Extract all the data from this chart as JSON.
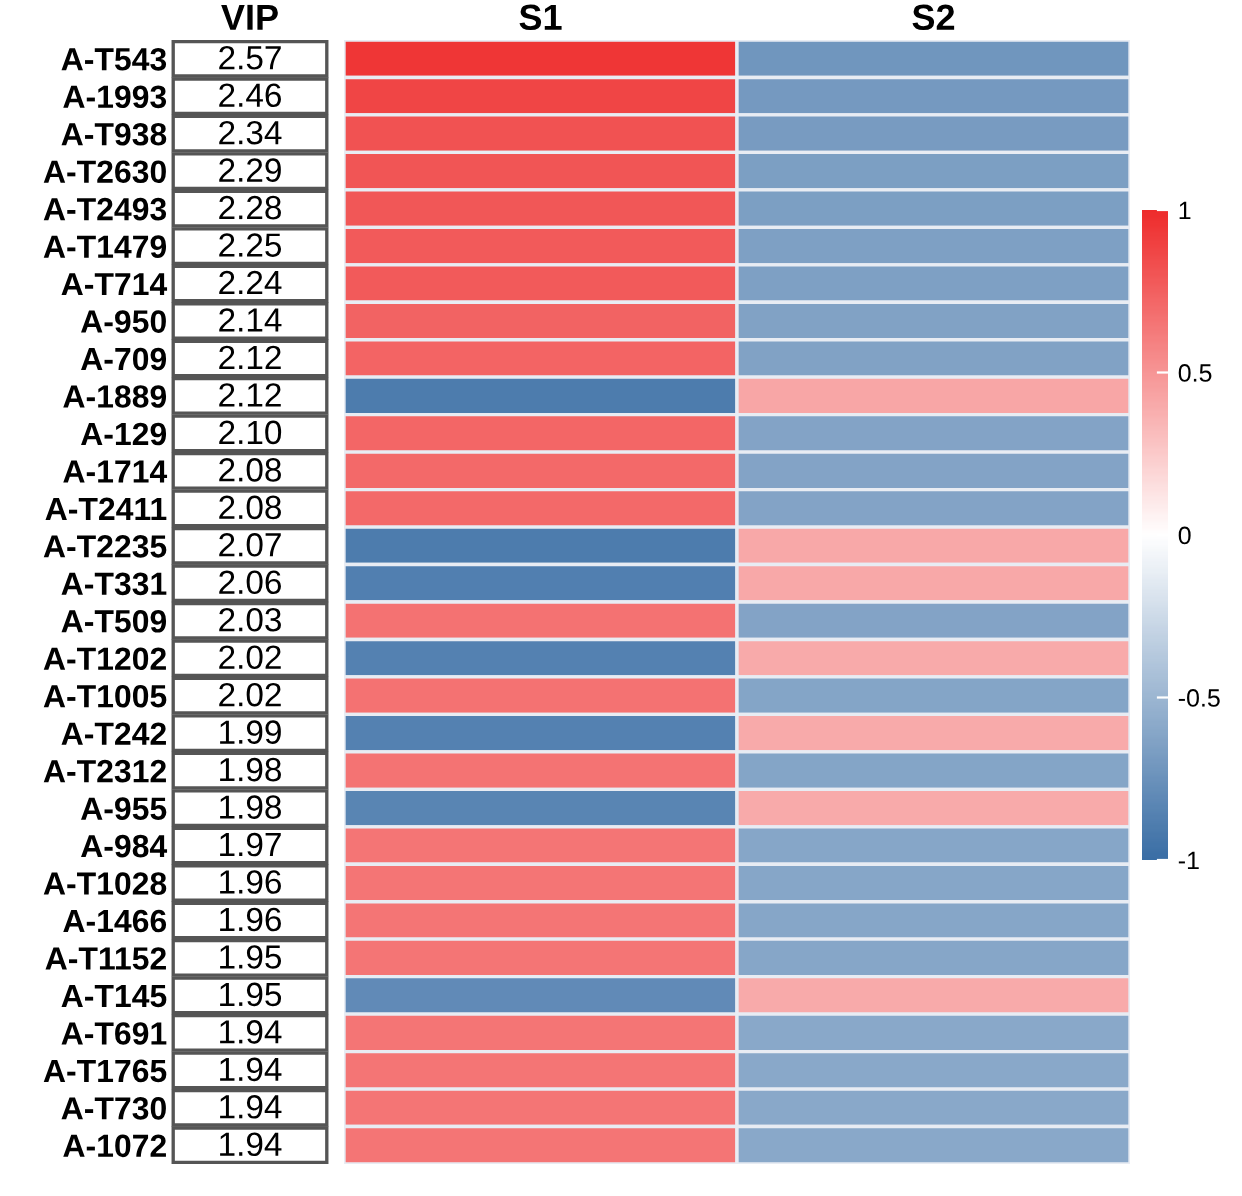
{
  "chart_data": {
    "type": "heatmap",
    "categories": [
      "VIP",
      "S1",
      "S2"
    ],
    "y_categories": [
      "A-T543",
      "A-1993",
      "A-T938",
      "A-T2630",
      "A-T2493",
      "A-T1479",
      "A-T714",
      "A-950",
      "A-709",
      "A-1889",
      "A-129",
      "A-1714",
      "A-T2411",
      "A-T2235",
      "A-T331",
      "A-T509",
      "A-T1202",
      "A-T1005",
      "A-T242",
      "A-T2312",
      "A-955",
      "A-984",
      "A-T1028",
      "A-1466",
      "A-T1152",
      "A-T145",
      "A-T691",
      "A-T1765",
      "A-T730",
      "A-1072"
    ],
    "cells": [
      [
        null,
        0.95,
        -0.72
      ],
      [
        null,
        0.88,
        -0.7
      ],
      [
        null,
        0.82,
        -0.68
      ],
      [
        null,
        0.8,
        -0.66
      ],
      [
        null,
        0.79,
        -0.66
      ],
      [
        null,
        0.78,
        -0.65
      ],
      [
        null,
        0.78,
        -0.65
      ],
      [
        null,
        0.74,
        -0.64
      ],
      [
        null,
        0.73,
        -0.64
      ],
      [
        null,
        -0.9,
        0.42
      ],
      [
        null,
        0.72,
        -0.63
      ],
      [
        null,
        0.71,
        -0.63
      ],
      [
        null,
        0.71,
        -0.63
      ],
      [
        null,
        -0.9,
        0.41
      ],
      [
        null,
        -0.88,
        0.41
      ],
      [
        null,
        0.67,
        -0.63
      ],
      [
        null,
        -0.86,
        0.4
      ],
      [
        null,
        0.67,
        -0.62
      ],
      [
        null,
        -0.86,
        0.4
      ],
      [
        null,
        0.66,
        -0.62
      ],
      [
        null,
        -0.84,
        0.4
      ],
      [
        null,
        0.65,
        -0.61
      ],
      [
        null,
        0.65,
        -0.61
      ],
      [
        null,
        0.65,
        -0.61
      ],
      [
        null,
        0.65,
        -0.61
      ],
      [
        null,
        -0.8,
        0.4
      ],
      [
        null,
        0.65,
        -0.6
      ],
      [
        null,
        0.65,
        -0.6
      ],
      [
        null,
        0.65,
        -0.6
      ],
      [
        null,
        0.65,
        -0.6
      ]
    ],
    "cell_labels": [
      [
        "2.57",
        null,
        null
      ],
      [
        "2.46",
        null,
        null
      ],
      [
        "2.34",
        null,
        null
      ],
      [
        "2.29",
        null,
        null
      ],
      [
        "2.28",
        null,
        null
      ],
      [
        "2.25",
        null,
        null
      ],
      [
        "2.24",
        null,
        null
      ],
      [
        "2.14",
        null,
        null
      ],
      [
        "2.12",
        null,
        null
      ],
      [
        "2.12",
        null,
        null
      ],
      [
        "2.10",
        null,
        null
      ],
      [
        "2.08",
        null,
        null
      ],
      [
        "2.08",
        null,
        null
      ],
      [
        "2.07",
        null,
        null
      ],
      [
        "2.06",
        null,
        null
      ],
      [
        "2.03",
        null,
        null
      ],
      [
        "2.02",
        null,
        null
      ],
      [
        "2.02",
        null,
        null
      ],
      [
        "1.99",
        null,
        null
      ],
      [
        "1.98",
        null,
        null
      ],
      [
        "1.98",
        null,
        null
      ],
      [
        "1.97",
        null,
        null
      ],
      [
        "1.96",
        null,
        null
      ],
      [
        "1.96",
        null,
        null
      ],
      [
        "1.95",
        null,
        null
      ],
      [
        "1.95",
        null,
        null
      ],
      [
        "1.94",
        null,
        null
      ],
      [
        "1.94",
        null,
        null
      ],
      [
        "1.94",
        null,
        null
      ],
      [
        "1.94",
        null,
        null
      ]
    ],
    "colors": [
      "#3a6ea5",
      "#ffffff",
      "#ee2c2c"
    ],
    "clim": [
      -1,
      1
    ],
    "cticks": [
      -1,
      -0.5,
      0,
      0.5,
      1
    ]
  }
}
